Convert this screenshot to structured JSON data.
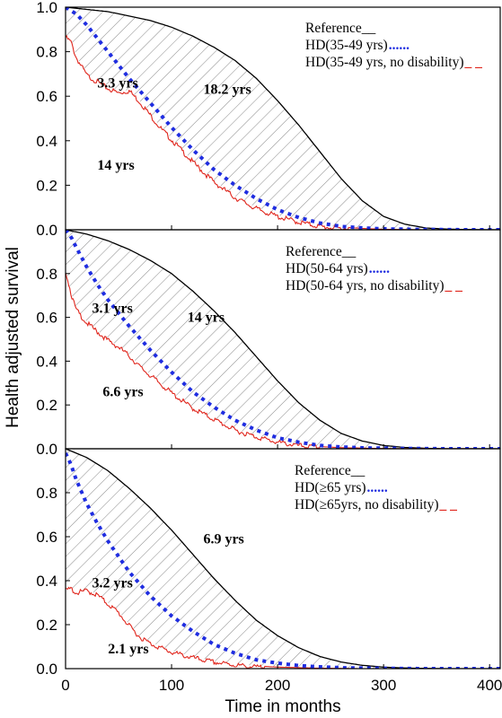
{
  "chart_data": {
    "type": "line",
    "ylabel": "Health adjusted survival",
    "xlabel": "Time in months",
    "xlim": [
      0,
      410
    ],
    "ylim": [
      0,
      1.0
    ],
    "x_ticks": [
      "0",
      "100",
      "200",
      "300",
      "400"
    ],
    "y_ticks": [
      "0.0",
      "0.2",
      "0.4",
      "0.6",
      "0.8",
      "1.0"
    ],
    "hatching": "diagonal hatch between Reference and HD curves",
    "series_styles": [
      {
        "key": "reference",
        "color": "#000000",
        "dash": "solid"
      },
      {
        "key": "hd",
        "color": "#1f2de0",
        "dash": "dotted-bold"
      },
      {
        "key": "hd_no_disability",
        "color": "#e0261d",
        "dash": "solid-jagged"
      }
    ],
    "panels": [
      {
        "legend": [
          "Reference__",
          "HD(35-49 yrs)",
          "HD(35-49 yrs, no disability)"
        ],
        "legend_marks": [
          "",
          "......",
          "_ _"
        ],
        "area_labels": [
          {
            "text": "3.3 yrs",
            "x": 30,
            "y": 0.64
          },
          {
            "text": "18.2 yrs",
            "x": 130,
            "y": 0.61
          },
          {
            "text": "14 yrs",
            "x": 30,
            "y": 0.27
          }
        ],
        "series": [
          {
            "name": "Reference",
            "x": [
              0,
              20,
              40,
              60,
              80,
              100,
              120,
              140,
              160,
              180,
              200,
              220,
              240,
              260,
              280,
              300,
              320,
              340,
              360,
              380,
              400,
              410
            ],
            "values": [
              1.0,
              0.99,
              0.98,
              0.96,
              0.94,
              0.91,
              0.87,
              0.82,
              0.76,
              0.68,
              0.58,
              0.47,
              0.35,
              0.23,
              0.13,
              0.06,
              0.025,
              0.008,
              0.003,
              0.001,
              0.0,
              0.0
            ]
          },
          {
            "name": "HD(35-49 yrs)",
            "x": [
              0,
              10,
              20,
              30,
              40,
              50,
              60,
              80,
              100,
              120,
              140,
              160,
              180,
              200,
              220,
              240,
              260,
              280,
              300,
              340,
              380,
              410
            ],
            "values": [
              1.0,
              0.97,
              0.92,
              0.86,
              0.8,
              0.74,
              0.68,
              0.57,
              0.46,
              0.36,
              0.27,
              0.2,
              0.14,
              0.09,
              0.055,
              0.03,
              0.015,
              0.008,
              0.004,
              0.001,
              0.0,
              0.0
            ]
          },
          {
            "name": "HD(35-49 yrs, no disability)",
            "x": [
              0,
              5,
              10,
              20,
              30,
              40,
              50,
              60,
              70,
              80,
              90,
              100,
              120,
              140,
              160,
              180,
              200,
              220,
              240,
              260,
              280,
              300,
              340,
              410
            ],
            "values": [
              0.87,
              0.85,
              0.78,
              0.7,
              0.67,
              0.64,
              0.62,
              0.63,
              0.58,
              0.52,
              0.46,
              0.41,
              0.31,
              0.22,
              0.15,
              0.1,
              0.065,
              0.04,
              0.02,
              0.012,
              0.006,
              0.002,
              0.0,
              0.0
            ]
          }
        ]
      },
      {
        "legend": [
          "Reference__",
          "HD(50-64 yrs)",
          "HD(50-64 yrs, no disability)"
        ],
        "legend_marks": [
          "",
          "......",
          "_ _"
        ],
        "area_labels": [
          {
            "text": "3.1 yrs",
            "x": 25,
            "y": 0.62
          },
          {
            "text": "14 yrs",
            "x": 115,
            "y": 0.58
          },
          {
            "text": "6.6 yrs",
            "x": 35,
            "y": 0.24
          }
        ],
        "series": [
          {
            "name": "Reference",
            "x": [
              0,
              20,
              40,
              60,
              80,
              100,
              120,
              140,
              160,
              180,
              200,
              220,
              240,
              260,
              280,
              300,
              320,
              340,
              360,
              380,
              400,
              410
            ],
            "values": [
              1.0,
              0.98,
              0.95,
              0.91,
              0.86,
              0.8,
              0.72,
              0.63,
              0.53,
              0.42,
              0.31,
              0.21,
              0.13,
              0.07,
              0.035,
              0.015,
              0.006,
              0.002,
              0.0,
              0.0,
              0.0,
              0.0
            ]
          },
          {
            "name": "HD(50-64 yrs)",
            "x": [
              0,
              5,
              10,
              20,
              30,
              40,
              50,
              60,
              80,
              100,
              120,
              140,
              160,
              180,
              200,
              220,
              240,
              260,
              280,
              320,
              360,
              410
            ],
            "values": [
              1.0,
              0.97,
              0.92,
              0.83,
              0.75,
              0.68,
              0.62,
              0.56,
              0.45,
              0.35,
              0.26,
              0.19,
              0.13,
              0.085,
              0.05,
              0.03,
              0.015,
              0.008,
              0.004,
              0.001,
              0.0,
              0.0
            ]
          },
          {
            "name": "HD(50-64 yrs, no disability)",
            "x": [
              0,
              3,
              6,
              10,
              20,
              30,
              40,
              50,
              60,
              70,
              80,
              100,
              120,
              140,
              160,
              180,
              200,
              220,
              240,
              260,
              300,
              410
            ],
            "values": [
              0.82,
              0.76,
              0.7,
              0.64,
              0.58,
              0.54,
              0.5,
              0.47,
              0.43,
              0.38,
              0.34,
              0.26,
              0.19,
              0.14,
              0.09,
              0.06,
              0.035,
              0.02,
              0.01,
              0.005,
              0.001,
              0.0
            ]
          }
        ]
      },
      {
        "legend": [
          "Reference__",
          "HD(≥65 yrs)",
          "HD(≥65yrs, no disability)"
        ],
        "legend_marks": [
          "",
          "......",
          "_ _"
        ],
        "area_labels": [
          {
            "text": "3.2 yrs",
            "x": 25,
            "y": 0.37
          },
          {
            "text": "6.9 yrs",
            "x": 130,
            "y": 0.57
          },
          {
            "text": "2.1 yrs",
            "x": 40,
            "y": 0.07
          }
        ],
        "series": [
          {
            "name": "Reference",
            "x": [
              0,
              20,
              40,
              60,
              80,
              100,
              120,
              140,
              160,
              180,
              200,
              220,
              240,
              260,
              280,
              300,
              320,
              340,
              360,
              380,
              400,
              410
            ],
            "values": [
              1.0,
              0.96,
              0.9,
              0.82,
              0.73,
              0.63,
              0.52,
              0.41,
              0.31,
              0.22,
              0.15,
              0.095,
              0.055,
              0.03,
              0.015,
              0.007,
              0.003,
              0.001,
              0.0,
              0.0,
              0.0,
              0.0
            ]
          },
          {
            "name": "HD(≥65 yrs)",
            "x": [
              0,
              5,
              10,
              20,
              30,
              40,
              50,
              60,
              80,
              100,
              120,
              140,
              160,
              180,
              200,
              220,
              240,
              260,
              300,
              340,
              410
            ],
            "values": [
              0.98,
              0.93,
              0.86,
              0.75,
              0.66,
              0.58,
              0.51,
              0.44,
              0.33,
              0.24,
              0.17,
              0.11,
              0.07,
              0.04,
              0.025,
              0.014,
              0.008,
              0.004,
              0.001,
              0.0,
              0.0
            ]
          },
          {
            "name": "HD(≥65yrs, no disability)",
            "x": [
              0,
              5,
              10,
              20,
              30,
              40,
              50,
              60,
              70,
              80,
              90,
              100,
              120,
              140,
              160,
              180,
              200,
              240,
              280,
              410
            ],
            "values": [
              0.36,
              0.37,
              0.35,
              0.36,
              0.34,
              0.3,
              0.26,
              0.2,
              0.15,
              0.12,
              0.1,
              0.08,
              0.055,
              0.035,
              0.022,
              0.012,
              0.007,
              0.002,
              0.0,
              0.0
            ]
          }
        ]
      }
    ]
  }
}
